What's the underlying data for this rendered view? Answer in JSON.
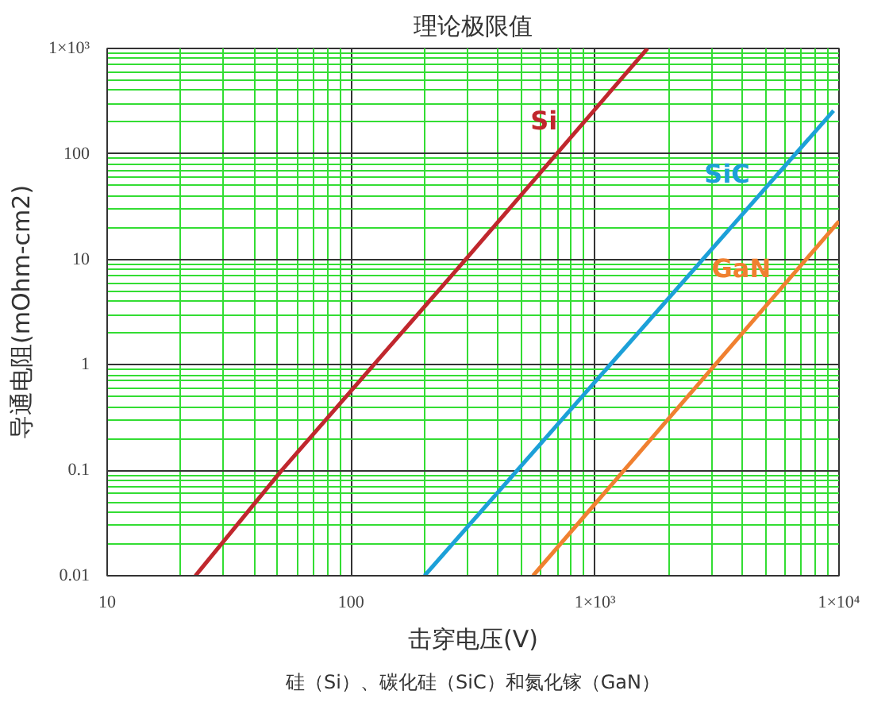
{
  "chart_data": {
    "type": "line",
    "title": "理论极限值",
    "xlabel": "击穿电压(V)",
    "ylabel": "导通电阻(mOhm-cm2)",
    "log": "xy",
    "grid": true,
    "legend": false,
    "marker": "none",
    "line_style": "solid",
    "xlim": [
      10,
      10000
    ],
    "ylim": [
      0.01,
      1000
    ],
    "xticks": [
      10,
      {
        "value": 20,
        "label": null
      },
      {
        "value": 30,
        "label": null
      },
      {
        "value": 40,
        "label": null
      },
      {
        "value": 50,
        "label": null
      },
      {
        "value": 60,
        "label": null
      },
      {
        "value": 70,
        "label": null
      },
      {
        "value": 80,
        "label": null
      },
      {
        "value": 90,
        "label": null
      },
      100,
      {
        "value": 200,
        "label": null
      },
      {
        "value": 300,
        "label": null
      },
      {
        "value": 400,
        "label": null
      },
      {
        "value": 500,
        "label": null
      },
      {
        "value": 600,
        "label": null
      },
      {
        "value": 700,
        "label": null
      },
      {
        "value": 800,
        "label": null
      },
      {
        "value": 900,
        "label": null
      },
      {
        "value": 1000,
        "label": "1×10³"
      },
      {
        "value": 2000,
        "label": null
      },
      {
        "value": 3000,
        "label": null
      },
      {
        "value": 4000,
        "label": null
      },
      {
        "value": 5000,
        "label": null
      },
      {
        "value": 6000,
        "label": null
      },
      {
        "value": 7000,
        "label": null
      },
      {
        "value": 8000,
        "label": null
      },
      {
        "value": 9000,
        "label": null
      },
      {
        "value": 10000,
        "label": "1×10⁴"
      }
    ],
    "yticks": [
      0.01,
      {
        "value": 0.02,
        "label": null
      },
      {
        "value": 0.03,
        "label": null
      },
      {
        "value": 0.04,
        "label": null
      },
      {
        "value": 0.05,
        "label": null
      },
      {
        "value": 0.06,
        "label": null
      },
      {
        "value": 0.07,
        "label": null
      },
      {
        "value": 0.08,
        "label": null
      },
      {
        "value": 0.09,
        "label": null
      },
      0.1,
      {
        "value": 0.2,
        "label": null
      },
      {
        "value": 0.3,
        "label": null
      },
      {
        "value": 0.4,
        "label": null
      },
      {
        "value": 0.5,
        "label": null
      },
      {
        "value": 0.6,
        "label": null
      },
      {
        "value": 0.7,
        "label": null
      },
      {
        "value": 0.8,
        "label": null
      },
      {
        "value": 0.9,
        "label": null
      },
      1,
      {
        "value": 2,
        "label": null
      },
      {
        "value": 3,
        "label": null
      },
      {
        "value": 4,
        "label": null
      },
      {
        "value": 5,
        "label": null
      },
      {
        "value": 6,
        "label": null
      },
      {
        "value": 7,
        "label": null
      },
      {
        "value": 8,
        "label": null
      },
      {
        "value": 9,
        "label": null
      },
      10,
      {
        "value": 20,
        "label": null
      },
      {
        "value": 30,
        "label": null
      },
      {
        "value": 40,
        "label": null
      },
      {
        "value": 50,
        "label": null
      },
      {
        "value": 60,
        "label": null
      },
      {
        "value": 70,
        "label": null
      },
      {
        "value": 80,
        "label": null
      },
      {
        "value": 90,
        "label": null
      },
      100,
      {
        "value": 200,
        "label": null
      },
      {
        "value": 300,
        "label": null
      },
      {
        "value": 400,
        "label": null
      },
      {
        "value": 500,
        "label": null
      },
      {
        "value": 600,
        "label": null
      },
      {
        "value": 700,
        "label": null
      },
      {
        "value": 800,
        "label": null
      },
      {
        "value": 900,
        "label": null
      },
      {
        "value": 1000,
        "label": "1×10³"
      }
    ],
    "series": [
      {
        "name": "Si",
        "color": "#c0272d",
        "x": [
          23,
          52,
          295,
          1640
        ],
        "values": [
          0.01,
          0.1,
          10,
          1000
        ]
      },
      {
        "name": "SiC",
        "color": "#1ca0d8",
        "x": [
          200,
          9500
        ],
        "values": [
          0.01,
          257
        ]
      },
      {
        "name": "GaN",
        "color": "#f08030",
        "x": [
          557,
          10000
        ],
        "values": [
          0.01,
          23
        ]
      }
    ],
    "annotations": [
      "硅（Si）、碳化硅（SiC）和氮化镓（GaN）"
    ]
  }
}
